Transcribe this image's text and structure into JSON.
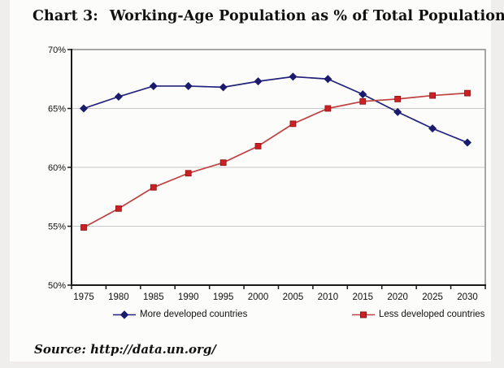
{
  "title": {
    "prefix": "Chart 3:",
    "text": "Working-Age Population as % of Total Population"
  },
  "source": "Source: http://data.un.org/",
  "chart_data": {
    "type": "line",
    "x": [
      "1975",
      "1980",
      "1985",
      "1990",
      "1995",
      "2000",
      "2005",
      "2010",
      "2015",
      "2020",
      "2025",
      "2030"
    ],
    "series": [
      {
        "name": "More developed countries",
        "marker": "diamond",
        "line_color": "#23237d",
        "marker_color": "#1b1b6e",
        "values": [
          65.0,
          66.0,
          66.9,
          66.9,
          66.8,
          67.3,
          67.7,
          67.5,
          66.2,
          64.7,
          63.3,
          62.1
        ]
      },
      {
        "name": "Less developed countries",
        "marker": "square",
        "line_color": "#bf4141",
        "marker_color": "#cc2024",
        "values": [
          54.9,
          56.5,
          58.3,
          59.5,
          60.4,
          61.8,
          63.7,
          65.0,
          65.6,
          65.8,
          66.1,
          66.3
        ]
      }
    ],
    "ylim": [
      50,
      70
    ],
    "yticks": [
      50,
      55,
      60,
      65,
      70
    ],
    "ytick_labels": [
      "50%",
      "55%",
      "60%",
      "65%",
      "70%"
    ],
    "grid": "horizontal",
    "legend_position": "bottom"
  },
  "colors": {
    "grid": "#c8c8c8",
    "plot_border": "#8a8a8a",
    "axis": "#1a1a1a",
    "page_bg": "#efeeec",
    "card_bg": "#fcfcfa"
  }
}
